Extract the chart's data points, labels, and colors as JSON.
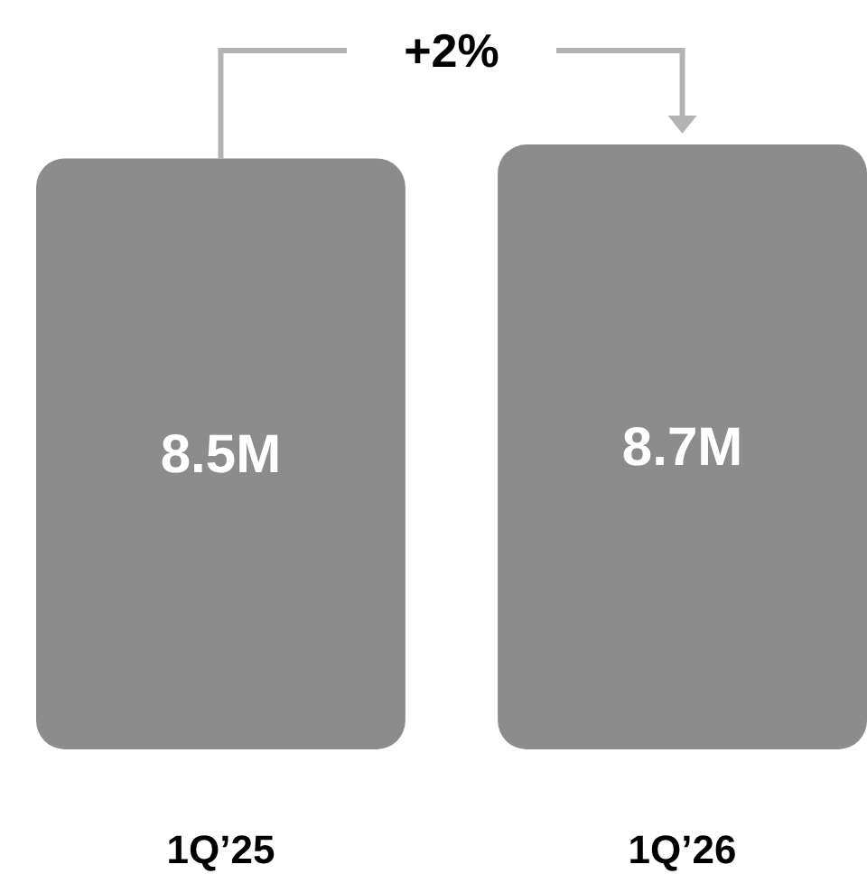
{
  "chart_data": {
    "type": "bar",
    "categories": [
      "1Q’25",
      "1Q’26"
    ],
    "values": [
      8.5,
      8.7
    ],
    "value_labels": [
      "8.5M",
      "8.7M"
    ],
    "color": "#8c8c8c",
    "annotations": [
      "+2%"
    ]
  }
}
